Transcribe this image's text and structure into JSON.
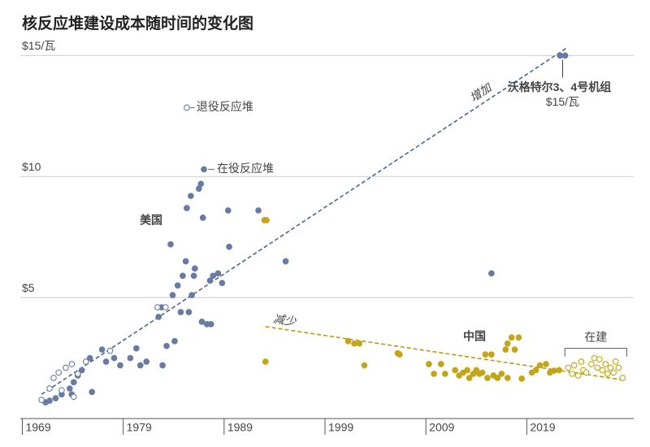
{
  "chart_data": {
    "type": "scatter",
    "title": "核反应堆建设成本随时间的变化图",
    "xlim": [
      1968.8,
      2029.2
    ],
    "ylim": [
      0,
      15.45
    ],
    "xticks": [
      1969,
      1979,
      1989,
      1999,
      2009,
      2019
    ],
    "yticks": [
      {
        "value": 5,
        "label": "$5"
      },
      {
        "value": 10,
        "label": "$10"
      },
      {
        "value": 15,
        "label": "$15/瓦"
      }
    ],
    "grid": true,
    "series": [
      {
        "name": "在役反应堆",
        "color": "#687ba3",
        "fill": true,
        "x": [
          1971.3,
          1971.7,
          1972.3,
          1972.9,
          1973.7,
          1973.9,
          1974.1,
          1974.5,
          1974.9,
          1975.7,
          1975.9,
          1976.9,
          1977.3,
          1978.1,
          1978.7,
          1979.7,
          1980.3,
          1980.7,
          1981.3,
          1982.5,
          1982.8,
          1982.9,
          1983.3,
          1983.7,
          1983.9,
          1984.1,
          1984.4,
          1984.7,
          1984.9,
          1985.2,
          1985.3,
          1985.5,
          1985.7,
          1985.8,
          1986.0,
          1986.1,
          1986.5,
          1986.7,
          1986.8,
          1986.9,
          1987.0,
          1987.3,
          1987.6,
          1987.7,
          1987.9,
          1988.4,
          1988.8,
          1989.4,
          1989.5,
          1992.4,
          1995.1,
          2015.5,
          2022.3,
          2022.8
        ],
        "values": [
          0.67,
          0.74,
          0.84,
          1.0,
          1.24,
          1.0,
          1.5,
          1.78,
          2.0,
          2.5,
          1.1,
          2.85,
          2.35,
          2.5,
          2.2,
          2.5,
          2.9,
          2.2,
          2.35,
          4.2,
          4.6,
          2.2,
          3.0,
          7.2,
          5.1,
          3.2,
          5.5,
          4.4,
          5.9,
          6.5,
          8.7,
          4.4,
          9.2,
          5.1,
          5.9,
          6.2,
          9.5,
          9.7,
          4.0,
          8.3,
          10.3,
          3.9,
          5.7,
          3.9,
          5.9,
          6.0,
          5.6,
          8.6,
          7.1,
          8.6,
          6.5,
          6.0,
          15.0,
          15.0
        ]
      },
      {
        "name": "退役反应堆",
        "color": "#687ba3",
        "fill": false,
        "x": [
          1970.9,
          1971.7,
          1972.1,
          1972.6,
          1972.9,
          1973.3,
          1973.9,
          1974.1,
          1974.5,
          1975.3,
          1977.7,
          1982.4,
          1983.2,
          1985.3
        ],
        "values": [
          0.77,
          1.24,
          1.68,
          1.9,
          1.17,
          2.1,
          2.25,
          0.9,
          1.85,
          2.35,
          2.8,
          4.6,
          4.6,
          12.85
        ]
      },
      {
        "color": "#c4a519",
        "fill": true,
        "x": [
          1993.0,
          1993.2,
          1993.1,
          2001.3,
          2001.9,
          2002.4,
          2002.9,
          2006.2,
          2006.4,
          2009.3,
          2009.8,
          2010.5,
          2010.9,
          2011.9,
          2012.3,
          2012.7,
          2013.1,
          2013.3,
          2013.7,
          2014.0,
          2014.3,
          2014.6,
          2014.9,
          2015.1,
          2015.5,
          2015.7,
          2016.1,
          2016.5,
          2016.9,
          2017.1,
          2017.1,
          2017.5,
          2017.8,
          2018.2,
          2018.5,
          2019.5,
          2019.9,
          2020.3,
          2020.9,
          2021.3,
          2021.7,
          2022.2
        ],
        "values": [
          8.2,
          8.2,
          2.35,
          3.2,
          3.1,
          3.1,
          2.2,
          2.7,
          2.65,
          2.25,
          1.85,
          2.25,
          1.85,
          2.0,
          1.78,
          1.9,
          2.0,
          1.68,
          1.85,
          2.0,
          1.85,
          1.9,
          2.65,
          1.68,
          2.65,
          1.78,
          1.68,
          1.85,
          2.85,
          3.1,
          1.68,
          3.35,
          2.85,
          3.35,
          1.65,
          1.9,
          2.0,
          2.2,
          2.25,
          1.9,
          1.98,
          2.0
        ]
      },
      {
        "name": "在建",
        "color": "#c4a519",
        "fill": false,
        "x": [
          2023.1,
          2023.5,
          2023.7,
          2024.1,
          2024.4,
          2024.6,
          2024.9,
          2025.4,
          2025.7,
          2026.0,
          2026.2,
          2026.5,
          2026.8,
          2027.0,
          2027.3,
          2027.6,
          2027.8,
          2028.1,
          2028.5
        ],
        "values": [
          2.1,
          1.85,
          2.2,
          1.78,
          2.35,
          2.0,
          1.9,
          2.25,
          2.5,
          2.1,
          2.45,
          2.0,
          2.25,
          1.85,
          2.1,
          1.9,
          2.35,
          2.1,
          1.68
        ]
      }
    ],
    "trend_lines": [
      {
        "label": "增加",
        "color": "#4f6591",
        "x": [
          1970.9,
          2022.9
        ],
        "values": [
          1.0,
          15.3
        ]
      },
      {
        "label": "减少",
        "color": "#b99a10",
        "x": [
          1993.1,
          2028.8
        ],
        "values": [
          3.8,
          1.58
        ]
      }
    ],
    "group_labels": [
      {
        "text": "美国",
        "color": "#5b6f99"
      },
      {
        "text": "中国",
        "color": "#c09d10"
      }
    ],
    "annotations": {
      "vogtle": "沃格特尔3、4号机组",
      "vogtle_cost": "$15/瓦"
    }
  }
}
